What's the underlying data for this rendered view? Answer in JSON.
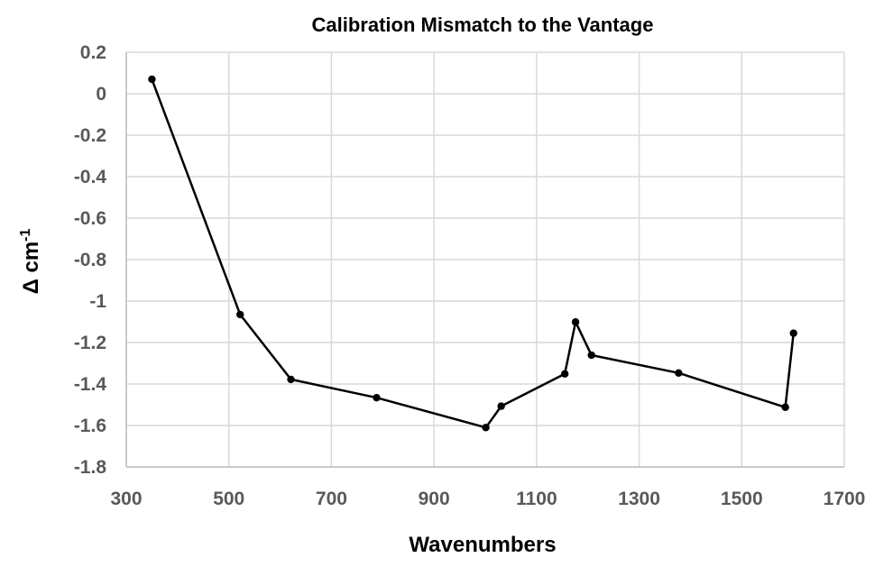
{
  "chart_data": {
    "type": "line",
    "title": "Calibration Mismatch to the Vantage",
    "xlabel": "Wavenumbers",
    "ylabel_base": "Δ cm",
    "ylabel_sup": "-1",
    "xlim": [
      300,
      1700
    ],
    "ylim": [
      -1.8,
      0.2
    ],
    "x_ticks": [
      "300",
      "500",
      "700",
      "900",
      "1100",
      "1300",
      "1500",
      "1700"
    ],
    "y_ticks": [
      "0.2",
      "0",
      "-0.2",
      "-0.4",
      "-0.6",
      "-0.8",
      "-1",
      "-1.2",
      "-1.4",
      "-1.6",
      "-1.8"
    ],
    "x_tick_values": [
      300,
      500,
      700,
      900,
      1100,
      1300,
      1500,
      1700
    ],
    "y_tick_values": [
      0.2,
      0,
      -0.2,
      -0.4,
      -0.6,
      -0.8,
      -1,
      -1.2,
      -1.4,
      -1.6,
      -1.8
    ],
    "grid": true,
    "legend": "none",
    "series": [
      {
        "color": "#000000",
        "points": [
          {
            "x": 350,
            "y": 0.07
          },
          {
            "x": 522,
            "y": -1.065
          },
          {
            "x": 621,
            "y": -1.378
          },
          {
            "x": 788,
            "y": -1.466
          },
          {
            "x": 1001,
            "y": -1.61
          },
          {
            "x": 1031,
            "y": -1.507
          },
          {
            "x": 1155,
            "y": -1.351
          },
          {
            "x": 1176,
            "y": -1.101
          },
          {
            "x": 1207,
            "y": -1.261
          },
          {
            "x": 1377,
            "y": -1.347
          },
          {
            "x": 1585,
            "y": -1.512
          },
          {
            "x": 1601,
            "y": -1.155
          }
        ]
      }
    ]
  }
}
